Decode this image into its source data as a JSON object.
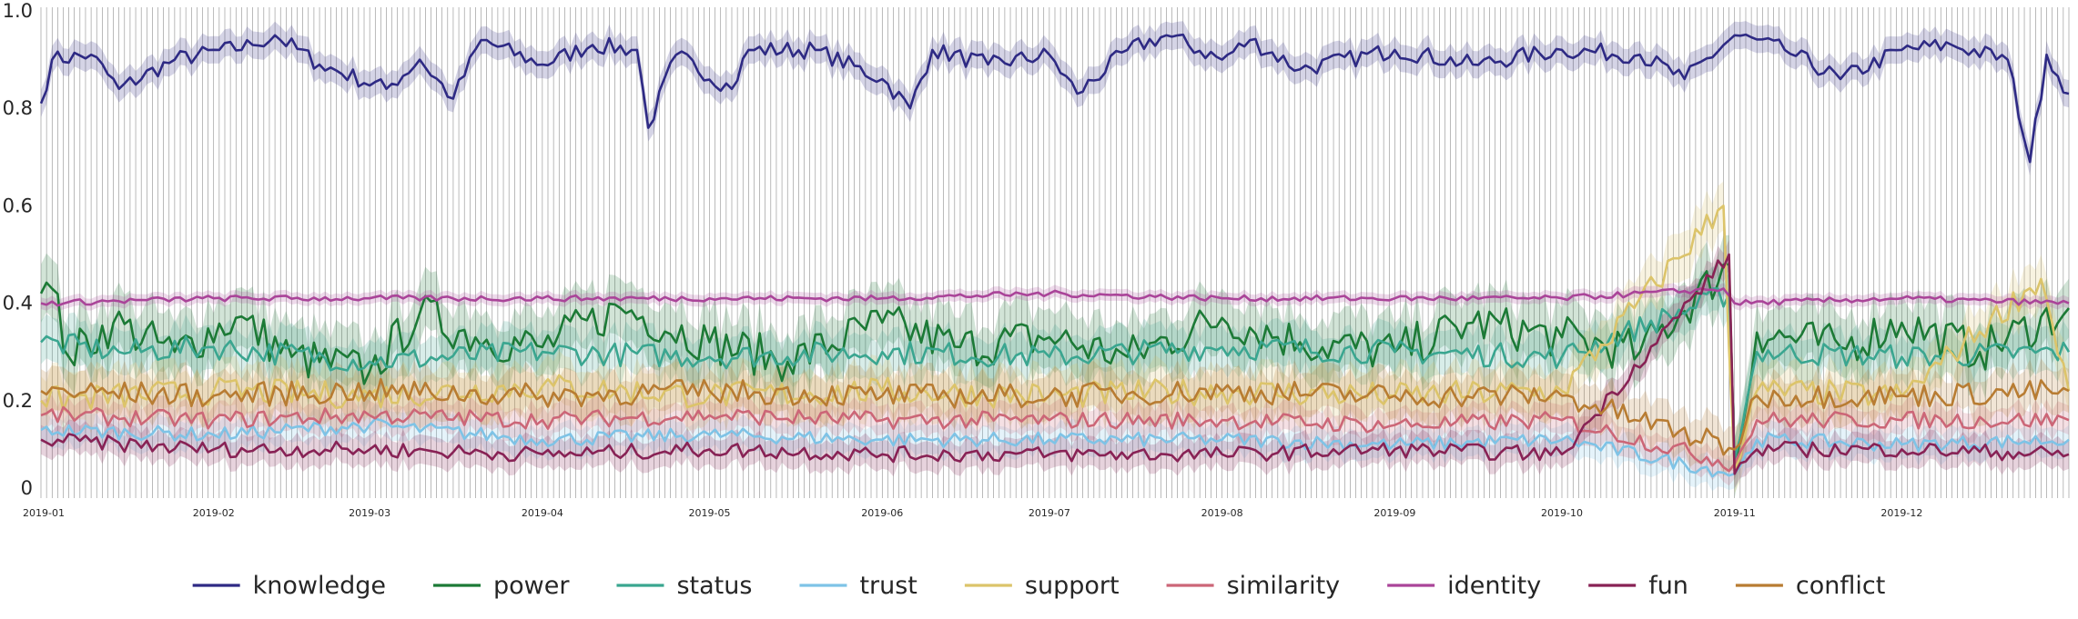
{
  "chart_data": {
    "type": "line",
    "title": "",
    "xlabel": "",
    "ylabel": "",
    "x_start": "2019-01-01",
    "x_end": "2019-12-31",
    "ylim": [
      0,
      1.0
    ],
    "yticks": [
      {
        "value": 0,
        "label": "0"
      },
      {
        "value": 0.2,
        "label": "0.2"
      },
      {
        "value": 0.4,
        "label": "0.4"
      },
      {
        "value": 0.6,
        "label": "0.6"
      },
      {
        "value": 0.8,
        "label": "0.8"
      },
      {
        "value": 1.0,
        "label": "1.0"
      }
    ],
    "xticks": [
      {
        "date": "2019-01-01",
        "label": "2019-01"
      },
      {
        "date": "2019-02-01",
        "label": "2019-02"
      },
      {
        "date": "2019-03-01",
        "label": "2019-03"
      },
      {
        "date": "2019-04-01",
        "label": "2019-04"
      },
      {
        "date": "2019-05-01",
        "label": "2019-05"
      },
      {
        "date": "2019-06-01",
        "label": "2019-06"
      },
      {
        "date": "2019-07-01",
        "label": "2019-07"
      },
      {
        "date": "2019-08-01",
        "label": "2019-08"
      },
      {
        "date": "2019-09-01",
        "label": "2019-09"
      },
      {
        "date": "2019-10-01",
        "label": "2019-10"
      },
      {
        "date": "2019-11-01",
        "label": "2019-11"
      },
      {
        "date": "2019-12-01",
        "label": "2019-12"
      }
    ],
    "grid": "vertical lines at every data point",
    "legend_position": "bottom-center",
    "confidence_band": true,
    "series": [
      {
        "name": "knowledge",
        "color": "#2e2a84",
        "approx_mean": 0.9,
        "points": [
          [
            "2019-01-01",
            0.81
          ],
          [
            "2019-01-03",
            0.9
          ],
          [
            "2019-01-10",
            0.91
          ],
          [
            "2019-01-15",
            0.84
          ],
          [
            "2019-01-25",
            0.9
          ],
          [
            "2019-02-08",
            0.93
          ],
          [
            "2019-02-12",
            0.95
          ],
          [
            "2019-02-20",
            0.89
          ],
          [
            "2019-03-04",
            0.84
          ],
          [
            "2019-03-10",
            0.9
          ],
          [
            "2019-03-16",
            0.82
          ],
          [
            "2019-03-21",
            0.94
          ],
          [
            "2019-04-01",
            0.89
          ],
          [
            "2019-04-10",
            0.93
          ],
          [
            "2019-04-18",
            0.92
          ],
          [
            "2019-04-20",
            0.76
          ],
          [
            "2019-04-25",
            0.91
          ],
          [
            "2019-05-05",
            0.84
          ],
          [
            "2019-05-08",
            0.92
          ],
          [
            "2019-05-20",
            0.92
          ],
          [
            "2019-06-01",
            0.86
          ],
          [
            "2019-06-06",
            0.8
          ],
          [
            "2019-06-10",
            0.92
          ],
          [
            "2019-06-20",
            0.89
          ],
          [
            "2019-07-01",
            0.91
          ],
          [
            "2019-07-06",
            0.83
          ],
          [
            "2019-07-15",
            0.92
          ],
          [
            "2019-07-22",
            0.95
          ],
          [
            "2019-08-01",
            0.9
          ],
          [
            "2019-08-06",
            0.94
          ],
          [
            "2019-08-15",
            0.88
          ],
          [
            "2019-09-01",
            0.92
          ],
          [
            "2019-09-15",
            0.89
          ],
          [
            "2019-10-01",
            0.92
          ],
          [
            "2019-10-15",
            0.91
          ],
          [
            "2019-10-23",
            0.86
          ],
          [
            "2019-11-01",
            0.95
          ],
          [
            "2019-11-10",
            0.92
          ],
          [
            "2019-11-20",
            0.86
          ],
          [
            "2019-12-01",
            0.92
          ],
          [
            "2019-12-10",
            0.93
          ],
          [
            "2019-12-20",
            0.9
          ],
          [
            "2019-12-24",
            0.69
          ],
          [
            "2019-12-27",
            0.91
          ],
          [
            "2019-12-31",
            0.83
          ]
        ]
      },
      {
        "name": "power",
        "color": "#1c7a36",
        "approx_mean": 0.33,
        "points": [
          [
            "2019-01-01",
            0.42
          ],
          [
            "2019-01-03",
            0.43
          ],
          [
            "2019-01-06",
            0.29
          ],
          [
            "2019-01-14",
            0.36
          ],
          [
            "2019-01-25",
            0.3
          ],
          [
            "2019-02-05",
            0.37
          ],
          [
            "2019-02-15",
            0.29
          ],
          [
            "2019-03-01",
            0.26
          ],
          [
            "2019-03-10",
            0.38
          ],
          [
            "2019-03-20",
            0.33
          ],
          [
            "2019-04-01",
            0.31
          ],
          [
            "2019-04-15",
            0.39
          ],
          [
            "2019-05-01",
            0.32
          ],
          [
            "2019-05-15",
            0.28
          ],
          [
            "2019-06-01",
            0.36
          ],
          [
            "2019-06-15",
            0.31
          ],
          [
            "2019-07-01",
            0.33
          ],
          [
            "2019-07-15",
            0.29
          ],
          [
            "2019-08-01",
            0.37
          ],
          [
            "2019-08-15",
            0.32
          ],
          [
            "2019-09-01",
            0.3
          ],
          [
            "2019-09-15",
            0.36
          ],
          [
            "2019-10-01",
            0.33
          ],
          [
            "2019-10-15",
            0.3
          ],
          [
            "2019-10-31",
            0.48
          ],
          [
            "2019-11-01",
            0.06
          ],
          [
            "2019-11-05",
            0.34
          ],
          [
            "2019-11-20",
            0.31
          ],
          [
            "2019-12-01",
            0.36
          ],
          [
            "2019-12-15",
            0.3
          ],
          [
            "2019-12-31",
            0.39
          ]
        ]
      },
      {
        "name": "status",
        "color": "#3aa690",
        "approx_mean": 0.3,
        "points": [
          [
            "2019-01-01",
            0.32
          ],
          [
            "2019-01-15",
            0.3
          ],
          [
            "2019-02-01",
            0.31
          ],
          [
            "2019-03-01",
            0.28
          ],
          [
            "2019-04-01",
            0.3
          ],
          [
            "2019-05-01",
            0.29
          ],
          [
            "2019-06-01",
            0.3
          ],
          [
            "2019-07-01",
            0.29
          ],
          [
            "2019-08-01",
            0.31
          ],
          [
            "2019-09-01",
            0.3
          ],
          [
            "2019-10-01",
            0.29
          ],
          [
            "2019-10-31",
            0.42
          ],
          [
            "2019-11-01",
            0.08
          ],
          [
            "2019-11-05",
            0.3
          ],
          [
            "2019-12-01",
            0.29
          ],
          [
            "2019-12-31",
            0.3
          ]
        ]
      },
      {
        "name": "trust",
        "color": "#7ec3e6",
        "approx_mean": 0.12,
        "points": [
          [
            "2019-01-01",
            0.14
          ],
          [
            "2019-02-01",
            0.13
          ],
          [
            "2019-03-01",
            0.15
          ],
          [
            "2019-04-01",
            0.12
          ],
          [
            "2019-05-01",
            0.13
          ],
          [
            "2019-06-01",
            0.12
          ],
          [
            "2019-07-01",
            0.12
          ],
          [
            "2019-08-01",
            0.12
          ],
          [
            "2019-09-01",
            0.11
          ],
          [
            "2019-10-01",
            0.12
          ],
          [
            "2019-11-01",
            0.05
          ],
          [
            "2019-11-05",
            0.12
          ],
          [
            "2019-12-01",
            0.11
          ],
          [
            "2019-12-31",
            0.12
          ]
        ]
      },
      {
        "name": "support",
        "color": "#dcc46a",
        "approx_mean": 0.22,
        "points": [
          [
            "2019-01-01",
            0.2
          ],
          [
            "2019-02-01",
            0.22
          ],
          [
            "2019-03-01",
            0.21
          ],
          [
            "2019-04-01",
            0.23
          ],
          [
            "2019-05-01",
            0.21
          ],
          [
            "2019-06-01",
            0.22
          ],
          [
            "2019-07-01",
            0.21
          ],
          [
            "2019-08-01",
            0.22
          ],
          [
            "2019-09-01",
            0.21
          ],
          [
            "2019-10-01",
            0.22
          ],
          [
            "2019-10-30",
            0.6
          ],
          [
            "2019-11-01",
            0.06
          ],
          [
            "2019-11-05",
            0.22
          ],
          [
            "2019-12-01",
            0.21
          ],
          [
            "2019-12-26",
            0.45
          ],
          [
            "2019-12-31",
            0.22
          ]
        ]
      },
      {
        "name": "similarity",
        "color": "#cc6677",
        "approx_mean": 0.16,
        "points": [
          [
            "2019-01-01",
            0.17
          ],
          [
            "2019-02-01",
            0.16
          ],
          [
            "2019-03-01",
            0.17
          ],
          [
            "2019-04-01",
            0.16
          ],
          [
            "2019-05-01",
            0.17
          ],
          [
            "2019-06-01",
            0.16
          ],
          [
            "2019-07-01",
            0.16
          ],
          [
            "2019-08-01",
            0.16
          ],
          [
            "2019-09-01",
            0.15
          ],
          [
            "2019-10-01",
            0.16
          ],
          [
            "2019-11-01",
            0.07
          ],
          [
            "2019-11-05",
            0.16
          ],
          [
            "2019-12-01",
            0.16
          ],
          [
            "2019-12-31",
            0.16
          ]
        ]
      },
      {
        "name": "identity",
        "color": "#aa4499",
        "approx_mean": 0.41,
        "points": [
          [
            "2019-01-01",
            0.4
          ],
          [
            "2019-02-01",
            0.41
          ],
          [
            "2019-03-01",
            0.41
          ],
          [
            "2019-04-01",
            0.41
          ],
          [
            "2019-05-01",
            0.41
          ],
          [
            "2019-06-01",
            0.41
          ],
          [
            "2019-07-01",
            0.42
          ],
          [
            "2019-08-01",
            0.41
          ],
          [
            "2019-09-01",
            0.41
          ],
          [
            "2019-10-01",
            0.41
          ],
          [
            "2019-10-30",
            0.43
          ],
          [
            "2019-11-01",
            0.4
          ],
          [
            "2019-12-01",
            0.41
          ],
          [
            "2019-12-31",
            0.4
          ]
        ]
      },
      {
        "name": "fun",
        "color": "#882255",
        "approx_mean": 0.1,
        "points": [
          [
            "2019-01-01",
            0.12
          ],
          [
            "2019-02-01",
            0.1
          ],
          [
            "2019-03-01",
            0.1
          ],
          [
            "2019-04-01",
            0.09
          ],
          [
            "2019-05-01",
            0.1
          ],
          [
            "2019-06-01",
            0.09
          ],
          [
            "2019-07-01",
            0.09
          ],
          [
            "2019-08-01",
            0.09
          ],
          [
            "2019-09-01",
            0.1
          ],
          [
            "2019-10-01",
            0.09
          ],
          [
            "2019-10-31",
            0.5
          ],
          [
            "2019-11-01",
            0.05
          ],
          [
            "2019-11-05",
            0.1
          ],
          [
            "2019-12-01",
            0.1
          ],
          [
            "2019-12-31",
            0.09
          ]
        ]
      },
      {
        "name": "conflict",
        "color": "#b87c32",
        "approx_mean": 0.22,
        "points": [
          [
            "2019-01-01",
            0.22
          ],
          [
            "2019-02-01",
            0.21
          ],
          [
            "2019-03-01",
            0.22
          ],
          [
            "2019-04-01",
            0.21
          ],
          [
            "2019-05-01",
            0.22
          ],
          [
            "2019-06-01",
            0.21
          ],
          [
            "2019-07-01",
            0.21
          ],
          [
            "2019-08-01",
            0.22
          ],
          [
            "2019-09-01",
            0.21
          ],
          [
            "2019-10-01",
            0.21
          ],
          [
            "2019-11-01",
            0.1
          ],
          [
            "2019-11-05",
            0.21
          ],
          [
            "2019-12-01",
            0.21
          ],
          [
            "2019-12-31",
            0.22
          ]
        ]
      }
    ]
  }
}
